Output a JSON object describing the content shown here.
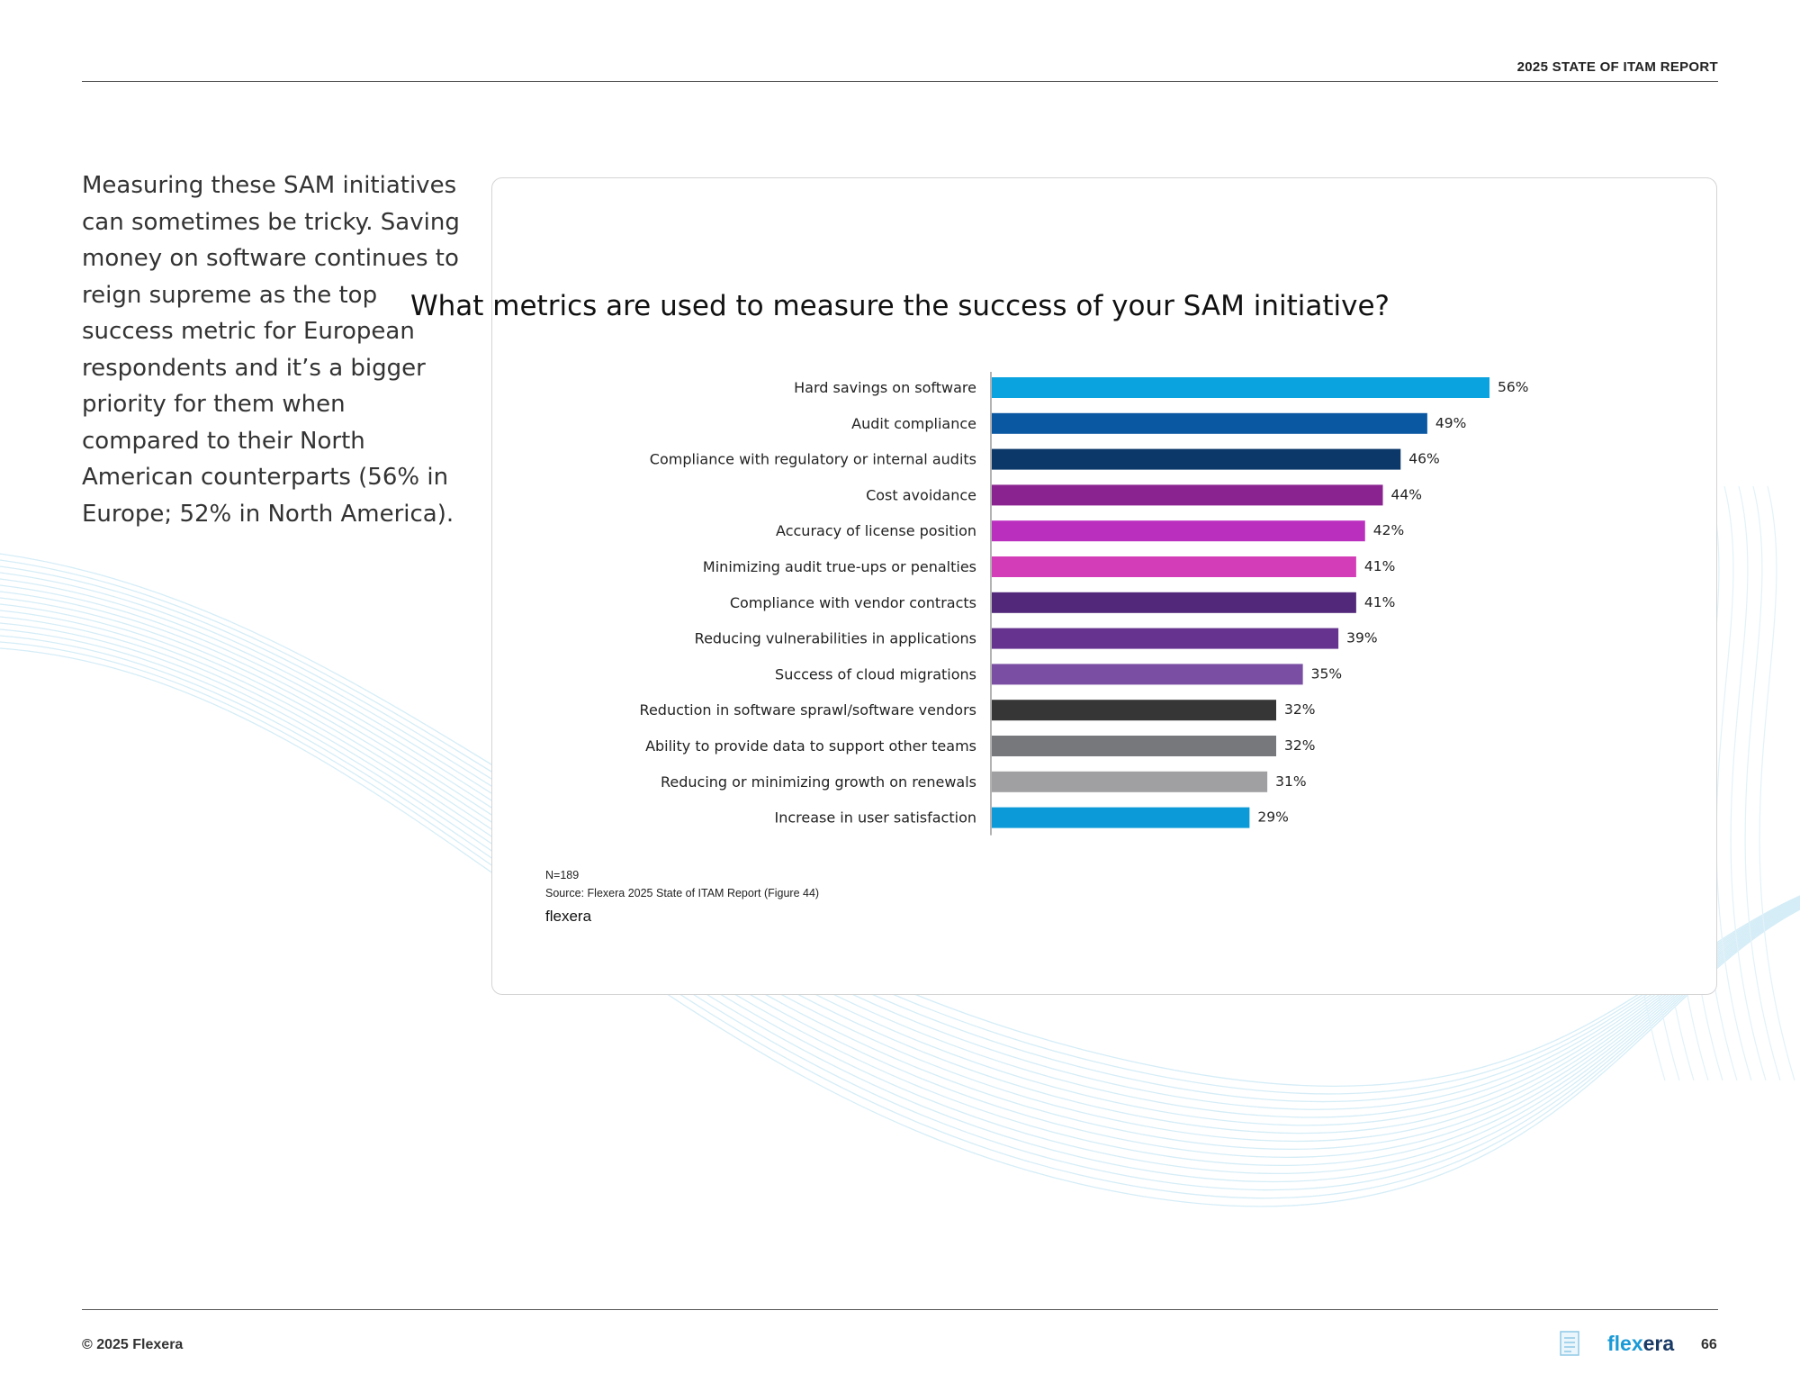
{
  "header": {
    "report_label": "2025 STATE OF ITAM REPORT"
  },
  "body_text": "Measuring these SAM initiatives can sometimes be tricky. Saving money on software continues to reign supreme as the top success metric for European respondents and it’s a bigger priority for them when compared to their North American counterparts (56% in Europe; 52% in North America).",
  "chart_data": {
    "type": "bar",
    "orientation": "horizontal",
    "title": "What metrics are used to measure the success of your SAM initiative?",
    "xlabel": "",
    "ylabel": "",
    "xlim": [
      0,
      60
    ],
    "categories": [
      "Hard savings on software",
      "Audit compliance",
      "Compliance with regulatory or internal audits",
      "Cost avoidance",
      "Accuracy of license position",
      "Minimizing audit true-ups or penalties",
      "Compliance with vendor contracts",
      "Reducing vulnerabilities in applications",
      "Success of cloud migrations",
      "Reduction in software sprawl/software vendors",
      "Ability to provide data to support other teams",
      "Reducing or minimizing growth on renewals",
      "Increase in user satisfaction"
    ],
    "values": [
      56,
      49,
      46,
      44,
      42,
      41,
      41,
      39,
      35,
      32,
      32,
      31,
      29
    ],
    "value_labels": [
      "56%",
      "49%",
      "46%",
      "44%",
      "42%",
      "41%",
      "41%",
      "39%",
      "35%",
      "32%",
      "32%",
      "31%",
      "29%"
    ],
    "colors": [
      "#0aa3e0",
      "#0a57a2",
      "#0b3769",
      "#8a2390",
      "#bb2fbf",
      "#d43db8",
      "#52287a",
      "#66348f",
      "#7a4fa3",
      "#363636",
      "#76787b",
      "#a0a0a3",
      "#0c9bd8"
    ],
    "grid": false,
    "legend": "none"
  },
  "notes": {
    "n": "N=189",
    "source": "Source: Flexera 2025 State of ITAM Report (Figure 44)",
    "brand": "flexera"
  },
  "footer": {
    "copyright": "© 2025 Flexera",
    "logo_part1": "flex",
    "logo_part2": "era",
    "page_number": "66"
  }
}
